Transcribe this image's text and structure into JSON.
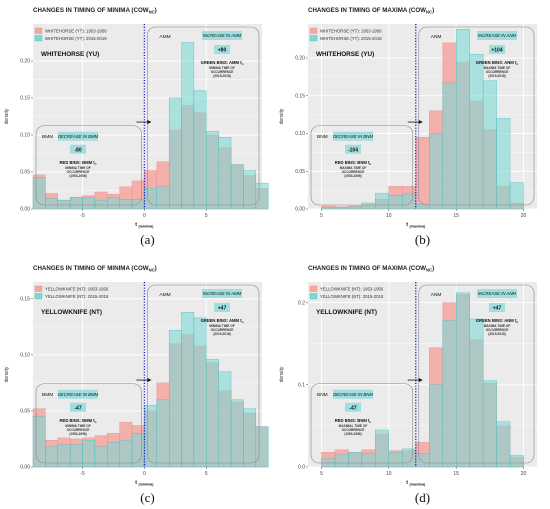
{
  "chart_data": [
    {
      "type": "bar",
      "caption": "(a)",
      "title_main": "CHANGES IN TIMING OF MINIMA (COW",
      "title_sub": "NC",
      "title_end": ")",
      "xlabel_main": "t",
      "xlabel_sub": "(minima)",
      "ylabel": "density",
      "xlim": [
        -9,
        9.5
      ],
      "ylim": [
        0,
        0.25
      ],
      "yticks": [
        "0.00",
        "0.05",
        "0.10",
        "0.15",
        "0.20"
      ],
      "ytick_values": [
        0,
        0.05,
        0.1,
        0.15,
        0.2
      ],
      "xticks": [
        "-5",
        "0",
        "5"
      ],
      "xtick_values": [
        -5,
        0,
        5
      ],
      "vline": 0,
      "bin_start": -9,
      "bin_width": 1,
      "series": [
        {
          "name": "WHITEHORSE (YT): 1953-1956",
          "color": "#f4a6a0",
          "values": [
            0.046,
            0.021,
            0.012,
            0.016,
            0.018,
            0.023,
            0.02,
            0.03,
            0.038,
            0.052,
            0.064,
            0.107,
            0.14,
            0.13,
            0.1,
            0.083,
            0.06,
            0.045,
            0.028
          ]
        },
        {
          "name": "WHITEHORSE (YT): 2015-2018",
          "color": "#7fd8d6",
          "values": [
            0.043,
            0.014,
            0.012,
            0.016,
            0.015,
            0.012,
            0.015,
            0.013,
            0.013,
            0.028,
            0.03,
            0.15,
            0.225,
            0.16,
            0.105,
            0.097,
            0.06,
            0.052,
            0.035
          ]
        }
      ],
      "station": "WHITEHORSE (YU)",
      "left_box": {
        "label": "BMM",
        "callout": "DECREASE IN BMM",
        "value": "-80",
        "title": "RED BINS: BMM t",
        "title_sub": "n",
        "lines": [
          "MINIMA TIME OF",
          "OCCURRENCE",
          "(1953-1956)"
        ]
      },
      "right_box": {
        "label": "AMM",
        "callout": "INCREASE IN AMM",
        "value": "+80",
        "title": "GREEN BINS: AMM t",
        "title_sub": "n",
        "lines": [
          "MINIMA TIME OF",
          "OCCURRENCE",
          "(2015-2018)"
        ]
      }
    },
    {
      "type": "bar",
      "caption": "(b)",
      "title_main": "CHANGES IN TIMING OF MAXIMA (COW",
      "title_sub": "NC",
      "title_end": ")",
      "xlabel_main": "t",
      "xlabel_sub": "(maxima)",
      "ylabel": "density",
      "xlim": [
        4,
        21
      ],
      "ylim": [
        0,
        0.245
      ],
      "yticks": [
        "0.00",
        "0.05",
        "0.10",
        "0.15",
        "0.20"
      ],
      "ytick_values": [
        0,
        0.05,
        0.1,
        0.15,
        0.2
      ],
      "xticks": [
        "5",
        "10",
        "15",
        "20"
      ],
      "xtick_values": [
        5,
        10,
        15,
        20
      ],
      "vline": 12,
      "bin_start": 5,
      "bin_width": 1,
      "series": [
        {
          "name": "WHITEHORSE (YT): 1953-1956",
          "color": "#f4a6a0",
          "values": [
            0.004,
            0.003,
            0.004,
            0.006,
            0.013,
            0.03,
            0.03,
            0.095,
            0.13,
            0.22,
            0.194,
            0.143,
            0.105,
            0.03,
            0.008
          ]
        },
        {
          "name": "WHITEHORSE (YT): 2015-2018",
          "color": "#7fd8d6",
          "values": [
            0.002,
            0.002,
            0.003,
            0.008,
            0.021,
            0.018,
            0.02,
            0.006,
            0.1,
            0.167,
            0.238,
            0.205,
            0.17,
            0.12,
            0.035
          ]
        }
      ],
      "station": "WHITEHORSE (YU)",
      "left_box": {
        "label": "BNM",
        "callout": "DECREASE IN BNM",
        "value": "-104",
        "title": "RED BINS: BNM t",
        "title_sub": "n",
        "lines": [
          "MAXIMA TIME OF",
          "OCCURRENCE",
          "(1953-1956)"
        ]
      },
      "right_box": {
        "label": "ANM",
        "callout": "INCREASE IN ANM",
        "value": "+104",
        "title": "GREEN BINS: ANM t",
        "title_sub": "n",
        "lines": [
          "MAXIMA TIME OF",
          "OCCURRENCE",
          "(2015-2018)"
        ]
      }
    },
    {
      "type": "bar",
      "caption": "(c)",
      "title_main": "CHANGES IN TIMING OF MINIMA (COW",
      "title_sub": "NC",
      "title_end": ")",
      "xlabel_main": "t",
      "xlabel_sub": "(minima)",
      "ylabel": "density",
      "xlim": [
        -9,
        9.5
      ],
      "ylim": [
        0,
        0.165
      ],
      "yticks": [
        "0.00",
        "0.05",
        "0.10",
        "0.15"
      ],
      "ytick_values": [
        0,
        0.05,
        0.1,
        0.15
      ],
      "xticks": [
        "-5",
        "0",
        "5"
      ],
      "xtick_values": [
        -5,
        0,
        5
      ],
      "vline": 0,
      "bin_start": -9,
      "bin_width": 1,
      "series": [
        {
          "name": "YELLOWKNIFE (NT): 1953-1956",
          "color": "#f4a6a0",
          "values": [
            0.052,
            0.024,
            0.026,
            0.025,
            0.026,
            0.028,
            0.03,
            0.04,
            0.037,
            0.05,
            0.075,
            0.11,
            0.118,
            0.108,
            0.093,
            0.068,
            0.058,
            0.048,
            0.036
          ]
        },
        {
          "name": "YELLOWKNIFE (NT): 2015-2018",
          "color": "#7fd8d6",
          "values": [
            0.045,
            0.018,
            0.02,
            0.02,
            0.024,
            0.018,
            0.022,
            0.024,
            0.03,
            0.055,
            0.06,
            0.122,
            0.138,
            0.133,
            0.096,
            0.085,
            0.06,
            0.052,
            0.036
          ]
        }
      ],
      "station": "YELLOWKNIFE (NT)",
      "left_box": {
        "label": "BMM",
        "callout": "DECREASE IN BMM",
        "value": "-47",
        "title": "RED BINS: BMM t",
        "title_sub": "n",
        "lines": [
          "MINIMA TIME OF",
          "OCCURRENCE",
          "(1953-1956)"
        ]
      },
      "right_box": {
        "label": "AMM",
        "callout": "INCREASE IN AMM",
        "value": "+47",
        "title": "GREEN BINS: AMM t",
        "title_sub": "n",
        "lines": [
          "MINIMA TIME OF",
          "OCCURRENCE",
          "(2015-2018)"
        ]
      }
    },
    {
      "type": "bar",
      "caption": "(d)",
      "title_main": "CHANGES IN TIMING OF MAXIMA (COW",
      "title_sub": "NC",
      "title_end": ")",
      "xlabel_main": "t",
      "xlabel_sub": "(maxima)",
      "ylabel": "density",
      "xlim": [
        4,
        21
      ],
      "ylim": [
        0,
        0.225
      ],
      "yticks": [
        "0.0",
        "0.1",
        "0.2"
      ],
      "ytick_values": [
        0,
        0.1,
        0.2
      ],
      "xticks": [
        "5",
        "10",
        "15",
        "20"
      ],
      "xtick_values": [
        5,
        10,
        15,
        20
      ],
      "vline": 12,
      "bin_start": 5,
      "bin_width": 1,
      "series": [
        {
          "name": "YELLOWKNIFE (NT): 1953-1956",
          "color": "#f4a6a0",
          "values": [
            0.018,
            0.021,
            0.018,
            0.021,
            0.04,
            0.02,
            0.02,
            0.03,
            0.145,
            0.2,
            0.21,
            0.155,
            0.102,
            0.05,
            0.012
          ]
        },
        {
          "name": "YELLOWKNIFE (NT): 2015-2018",
          "color": "#7fd8d6",
          "values": [
            0.01,
            0.015,
            0.018,
            0.016,
            0.045,
            0.018,
            0.022,
            0.016,
            0.1,
            0.178,
            0.212,
            0.18,
            0.105,
            0.055,
            0.014
          ]
        }
      ],
      "station": "YELLOWKNIFE (NT)",
      "left_box": {
        "label": "BNM",
        "callout": "DECREASE IN BNM",
        "value": "-47",
        "title": "RED BINS: BNM t",
        "title_sub": "n",
        "lines": [
          "MAXIMAL TIME OF",
          "OCCURRENCE",
          "(1953-1956)"
        ]
      },
      "right_box": {
        "label": "ANM",
        "callout": "INCREASE IN ANM",
        "value": "+47",
        "title": "GREEN BINS: ANM t",
        "title_sub": "n",
        "lines": [
          "MAXIMA TIME OF",
          "OCCURRENCE",
          "(2015-2018)"
        ]
      }
    }
  ],
  "colors": {
    "panel_bg": "#ebebeb",
    "grid": "#ffffff",
    "vline": "#1a1ad6",
    "callout_bg": "#9fdfdf",
    "box_stroke": "#888888"
  }
}
